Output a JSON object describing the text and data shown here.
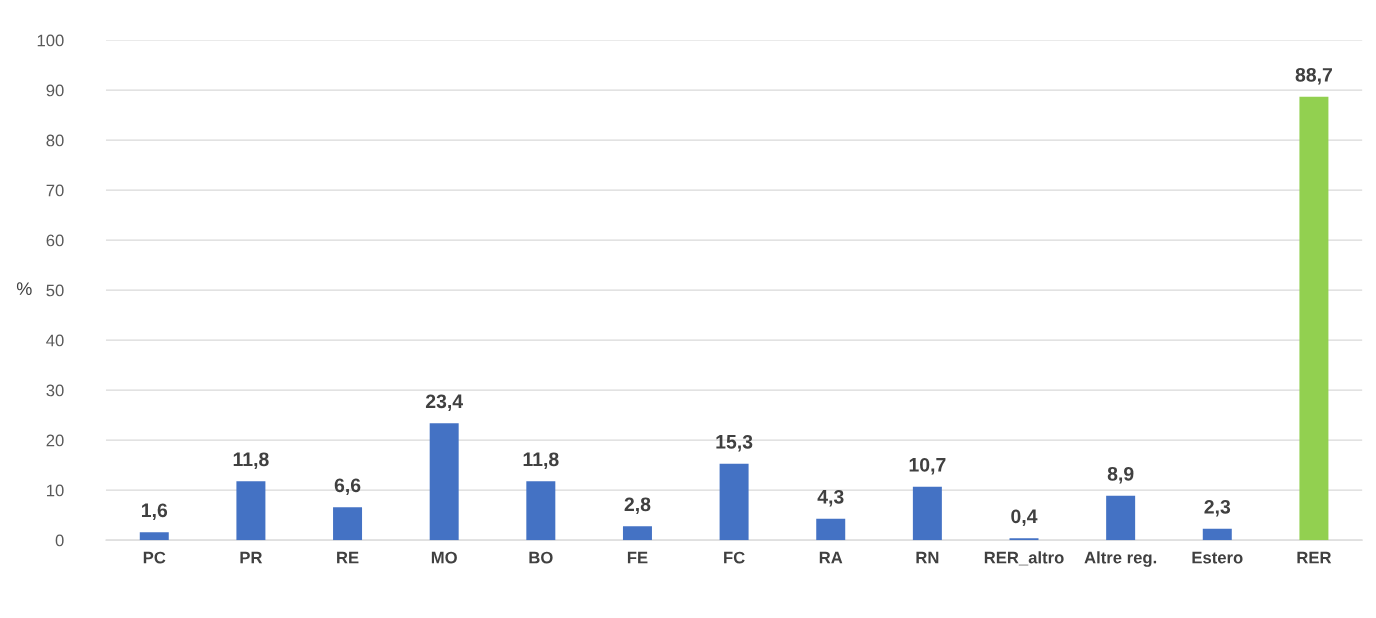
{
  "chart_data": {
    "type": "bar",
    "ylabel": "%",
    "categories": [
      "PC",
      "PR",
      "RE",
      "MO",
      "BO",
      "FE",
      "FC",
      "RA",
      "RN",
      "RER_altro",
      "Altre reg.",
      "Estero",
      "RER"
    ],
    "values": [
      1.6,
      11.8,
      6.6,
      23.4,
      11.8,
      2.8,
      15.3,
      4.3,
      10.7,
      0.4,
      8.9,
      2.3,
      88.7
    ],
    "value_labels": [
      "1,6",
      "11,8",
      "6,6",
      "23,4",
      "11,8",
      "2,8",
      "15,3",
      "4,3",
      "10,7",
      "0,4",
      "8,9",
      "2,3",
      "88,7"
    ],
    "colors": [
      "#4472c4",
      "#4472c4",
      "#4472c4",
      "#4472c4",
      "#4472c4",
      "#4472c4",
      "#4472c4",
      "#4472c4",
      "#4472c4",
      "#4472c4",
      "#4472c4",
      "#4472c4",
      "#92d050"
    ],
    "ylim": [
      0,
      100
    ],
    "yticks": [
      0,
      10,
      20,
      30,
      40,
      50,
      60,
      70,
      80,
      90,
      100
    ],
    "grid": "y",
    "legend": false
  }
}
